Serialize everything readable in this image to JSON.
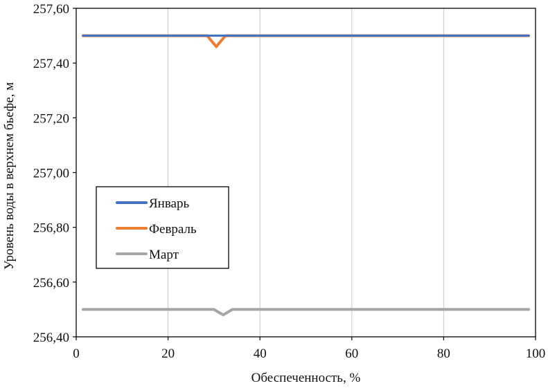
{
  "chart_data": {
    "type": "line",
    "xlabel": "Обеспеченность, %",
    "ylabel": "Уровень воды в верхнем бьефе, м",
    "xlim": [
      0,
      100
    ],
    "ylim": [
      256.4,
      257.6
    ],
    "x_ticks": [
      "0",
      "20",
      "40",
      "60",
      "80",
      "100"
    ],
    "y_ticks": [
      "256,40",
      "256,60",
      "256,80",
      "257,00",
      "257,20",
      "257,40",
      "257,60"
    ],
    "grid": "vertical",
    "legend_position": "center-left",
    "series": [
      {
        "name": "Январь",
        "color": "#4472c4",
        "x": [
          1.5,
          28.5,
          29.5,
          30.5,
          31.5,
          32.5,
          33.5,
          98.5
        ],
        "y": [
          257.5,
          257.5,
          257.5,
          257.5,
          257.5,
          257.5,
          257.5,
          257.5
        ]
      },
      {
        "name": "Февраль",
        "color": "#ed7d31",
        "x": [
          1.5,
          28.5,
          29.5,
          30.5,
          31.5,
          32.5,
          33.5,
          98.5
        ],
        "y": [
          257.5,
          257.5,
          257.48,
          257.46,
          257.48,
          257.5,
          257.5,
          257.5
        ]
      },
      {
        "name": "Март",
        "color": "#a5a5a5",
        "x": [
          1.5,
          30.0,
          31.0,
          32.0,
          33.0,
          34.0,
          98.5
        ],
        "y": [
          256.5,
          256.5,
          256.49,
          256.48,
          256.49,
          256.5,
          256.5
        ]
      }
    ]
  }
}
